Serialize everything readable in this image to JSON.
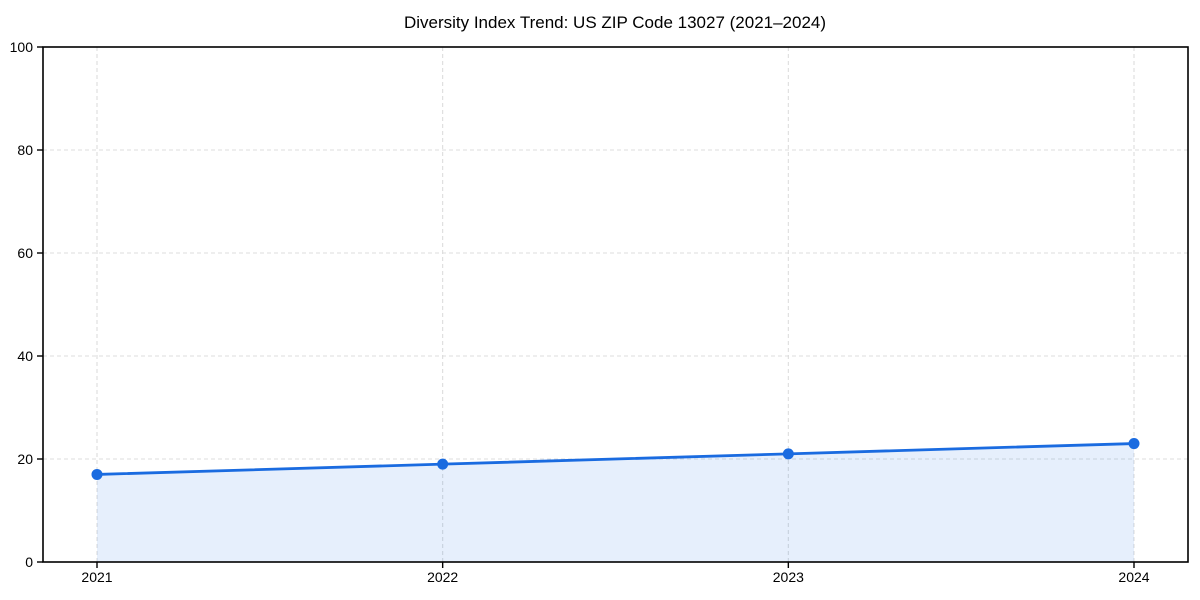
{
  "figure": {
    "background": "#ffffff"
  },
  "chart_data": {
    "type": "line",
    "title": "Diversity Index Trend: US ZIP Code 13027 (2021–2024)",
    "x": [
      "2021",
      "2022",
      "2023",
      "2024"
    ],
    "series": [
      {
        "name": "Diversity Index",
        "values": [
          17,
          19,
          21,
          23
        ]
      }
    ],
    "xlabel": "",
    "ylabel": "",
    "ylim": [
      0,
      100
    ],
    "yticks": [
      0,
      20,
      40,
      60,
      80,
      100
    ],
    "grid": true,
    "grid_style": "dashed",
    "legend": "none",
    "area_fill": true,
    "fill_opacity": 0.11,
    "colors": {
      "line": "#1a6be0",
      "marker": "#1a6be0",
      "grid": "#dddddd",
      "axis": "#000000",
      "text": "#000000",
      "background": "#ffffff"
    }
  }
}
